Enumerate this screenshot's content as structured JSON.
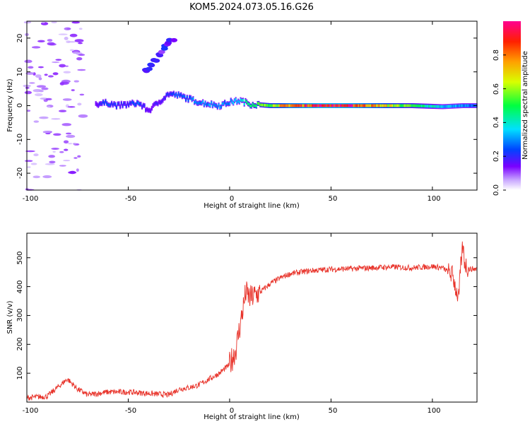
{
  "title": "KOM5.2024.073.05.16.G26",
  "chart_data": [
    {
      "type": "heatmap",
      "xlabel": "Height of straight line (km)",
      "ylabel": "Frequency (Hz)",
      "xlim": [
        -100,
        122
      ],
      "ylim": [
        -25,
        25
      ],
      "xticks": [
        "-100",
        "-50",
        "0",
        "50",
        "100"
      ],
      "yticks": [
        "-20",
        "-10",
        "0",
        "10",
        "20"
      ],
      "colorbar": {
        "label": "Normalized spectral amplitude",
        "range": [
          0,
          1
        ],
        "ticks": [
          "0.0",
          "0.2",
          "0.4",
          "0.6",
          "0.8"
        ],
        "colormap": "rainbow"
      },
      "ridge": [
        {
          "x": -66,
          "freq": 0.5,
          "amp": 0.15
        },
        {
          "x": -60,
          "freq": 0.8,
          "amp": 0.25
        },
        {
          "x": -55,
          "freq": 0.0,
          "amp": 0.2
        },
        {
          "x": -50,
          "freq": 0.4,
          "amp": 0.2
        },
        {
          "x": -45,
          "freq": 0.8,
          "amp": 0.25
        },
        {
          "x": -40,
          "freq": -1.5,
          "amp": 0.15
        },
        {
          "x": -30,
          "freq": 3.5,
          "amp": 0.2
        },
        {
          "x": -25,
          "freq": 3.0,
          "amp": 0.25
        },
        {
          "x": -20,
          "freq": 2.0,
          "amp": 0.25
        },
        {
          "x": -15,
          "freq": 1.0,
          "amp": 0.3
        },
        {
          "x": -10,
          "freq": 0.5,
          "amp": 0.3
        },
        {
          "x": -5,
          "freq": 0.0,
          "amp": 0.3
        },
        {
          "x": 0,
          "freq": 1.0,
          "amp": 0.3
        },
        {
          "x": 5,
          "freq": 1.5,
          "amp": 0.35
        },
        {
          "x": 10,
          "freq": 0.5,
          "amp": 0.45
        },
        {
          "x": 20,
          "freq": 0.0,
          "amp": 0.6
        },
        {
          "x": 30,
          "freq": 0.0,
          "amp": 0.8
        },
        {
          "x": 45,
          "freq": 0.0,
          "amp": 0.95
        },
        {
          "x": 60,
          "freq": 0.0,
          "amp": 0.9
        },
        {
          "x": 75,
          "freq": 0.0,
          "amp": 0.7
        },
        {
          "x": 90,
          "freq": 0.0,
          "amp": 0.5
        },
        {
          "x": 105,
          "freq": -0.3,
          "amp": 0.35
        },
        {
          "x": 115,
          "freq": 0.0,
          "amp": 0.3
        },
        {
          "x": 122,
          "freq": 0.0,
          "amp": 0.25
        }
      ],
      "streak": {
        "x": [
          -42,
          -28
        ],
        "freq": [
          10,
          20
        ],
        "amp": 0.15
      },
      "noise_region": {
        "x": [
          -100,
          -72
        ],
        "freq": [
          -25,
          25
        ],
        "amp": 0.08
      }
    },
    {
      "type": "line",
      "xlabel": "Height of straight line (km)",
      "ylabel": "SNR (v/v)",
      "xlim": [
        -100,
        122
      ],
      "ylim": [
        0,
        585
      ],
      "xticks": [
        "-100",
        "-50",
        "0",
        "50",
        "100"
      ],
      "yticks": [
        "100",
        "200",
        "300",
        "400",
        "500"
      ],
      "series": [
        {
          "color": "#e8332a",
          "x": [
            -100,
            -90,
            -85,
            -80,
            -75,
            -70,
            -60,
            -50,
            -40,
            -30,
            -25,
            -20,
            -15,
            -10,
            -5,
            0,
            3,
            5,
            7,
            8,
            10,
            15,
            20,
            25,
            30,
            40,
            50,
            60,
            70,
            80,
            90,
            100,
            105,
            110,
            112,
            113,
            114,
            115,
            116,
            118,
            122
          ],
          "y": [
            15,
            20,
            50,
            80,
            45,
            25,
            35,
            35,
            30,
            25,
            45,
            50,
            60,
            80,
            100,
            130,
            180,
            260,
            340,
            380,
            360,
            380,
            410,
            430,
            445,
            455,
            460,
            462,
            465,
            468,
            465,
            470,
            465,
            440,
            380,
            360,
            470,
            540,
            480,
            460,
            462
          ]
        }
      ]
    }
  ]
}
